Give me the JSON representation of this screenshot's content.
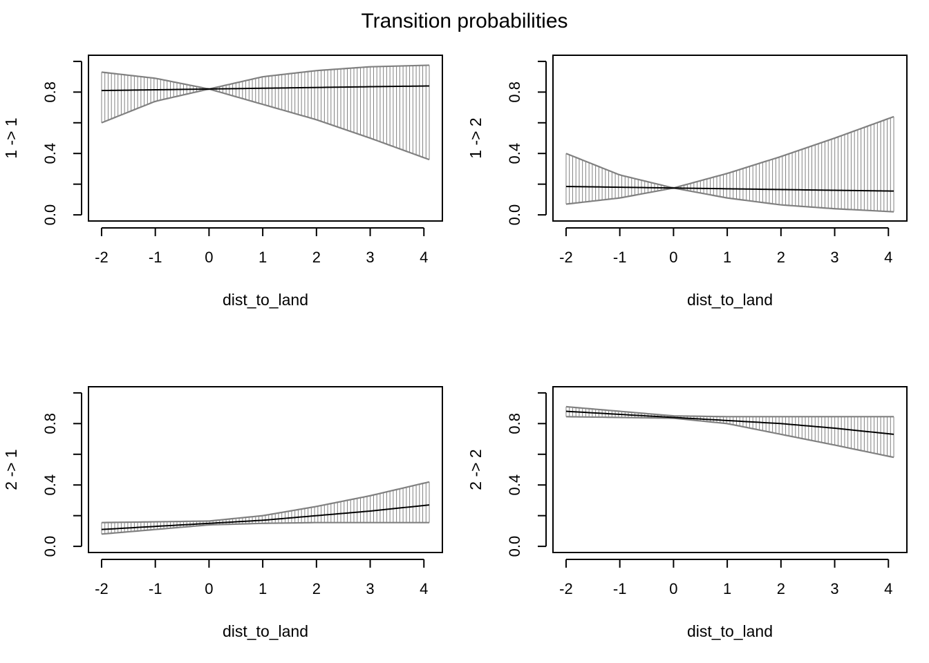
{
  "title": "Transition probabilities",
  "colors": {
    "axis": "#000000",
    "ci": "#808080",
    "mean": "#000000",
    "background": "#ffffff"
  },
  "chart_data": [
    {
      "type": "line",
      "panel": "top-left",
      "xlabel": "dist_to_land",
      "ylabel": "1 -> 1",
      "xlim": [
        -2,
        4.1
      ],
      "ylim": [
        0,
        1
      ],
      "xticks": [
        "-2",
        "-1",
        "0",
        "1",
        "2",
        "3",
        "4"
      ],
      "yticks": [
        "0.0",
        "0.4",
        "0.8"
      ],
      "x": [
        -2,
        -1,
        0,
        1,
        2,
        3,
        4.1
      ],
      "series": [
        {
          "values": [
            0.81,
            0.815,
            0.82,
            0.825,
            0.83,
            0.835,
            0.84
          ]
        },
        {
          "values": [
            0.6,
            0.74,
            0.82,
            0.72,
            0.62,
            0.5,
            0.36
          ]
        },
        {
          "values": [
            0.93,
            0.89,
            0.82,
            0.9,
            0.94,
            0.965,
            0.975
          ]
        }
      ]
    },
    {
      "type": "line",
      "panel": "top-right",
      "xlabel": "dist_to_land",
      "ylabel": "1 -> 2",
      "xlim": [
        -2,
        4.1
      ],
      "ylim": [
        0,
        1
      ],
      "xticks": [
        "-2",
        "-1",
        "0",
        "1",
        "2",
        "3",
        "4"
      ],
      "yticks": [
        "0.0",
        "0.4",
        "0.8"
      ],
      "x": [
        -2,
        -1,
        0,
        1,
        2,
        3,
        4.1
      ],
      "series": [
        {
          "values": [
            0.185,
            0.18,
            0.175,
            0.17,
            0.165,
            0.16,
            0.155
          ]
        },
        {
          "values": [
            0.07,
            0.11,
            0.175,
            0.11,
            0.065,
            0.04,
            0.02
          ]
        },
        {
          "values": [
            0.4,
            0.26,
            0.175,
            0.27,
            0.38,
            0.5,
            0.64
          ]
        }
      ]
    },
    {
      "type": "line",
      "panel": "bottom-left",
      "xlabel": "dist_to_land",
      "ylabel": "2 -> 1",
      "xlim": [
        -2,
        4.1
      ],
      "ylim": [
        0,
        1
      ],
      "xticks": [
        "-2",
        "-1",
        "0",
        "1",
        "2",
        "3",
        "4"
      ],
      "yticks": [
        "0.0",
        "0.4",
        "0.8"
      ],
      "x": [
        -2,
        -1,
        0,
        1,
        2,
        3,
        4.1
      ],
      "series": [
        {
          "values": [
            0.11,
            0.13,
            0.15,
            0.17,
            0.2,
            0.23,
            0.27
          ]
        },
        {
          "values": [
            0.08,
            0.11,
            0.14,
            0.15,
            0.155,
            0.155,
            0.155
          ]
        },
        {
          "values": [
            0.155,
            0.16,
            0.165,
            0.2,
            0.26,
            0.33,
            0.42
          ]
        }
      ]
    },
    {
      "type": "line",
      "panel": "bottom-right",
      "xlabel": "dist_to_land",
      "ylabel": "2 -> 2",
      "xlim": [
        -2,
        4.1
      ],
      "ylim": [
        0,
        1
      ],
      "xticks": [
        "-2",
        "-1",
        "0",
        "1",
        "2",
        "3",
        "4"
      ],
      "yticks": [
        "0.0",
        "0.4",
        "0.8"
      ],
      "x": [
        -2,
        -1,
        0,
        1,
        2,
        3,
        4.1
      ],
      "series": [
        {
          "values": [
            0.88,
            0.86,
            0.84,
            0.82,
            0.8,
            0.77,
            0.73
          ]
        },
        {
          "values": [
            0.845,
            0.84,
            0.835,
            0.8,
            0.73,
            0.66,
            0.58
          ]
        },
        {
          "values": [
            0.91,
            0.88,
            0.85,
            0.845,
            0.845,
            0.845,
            0.845
          ]
        }
      ]
    }
  ]
}
